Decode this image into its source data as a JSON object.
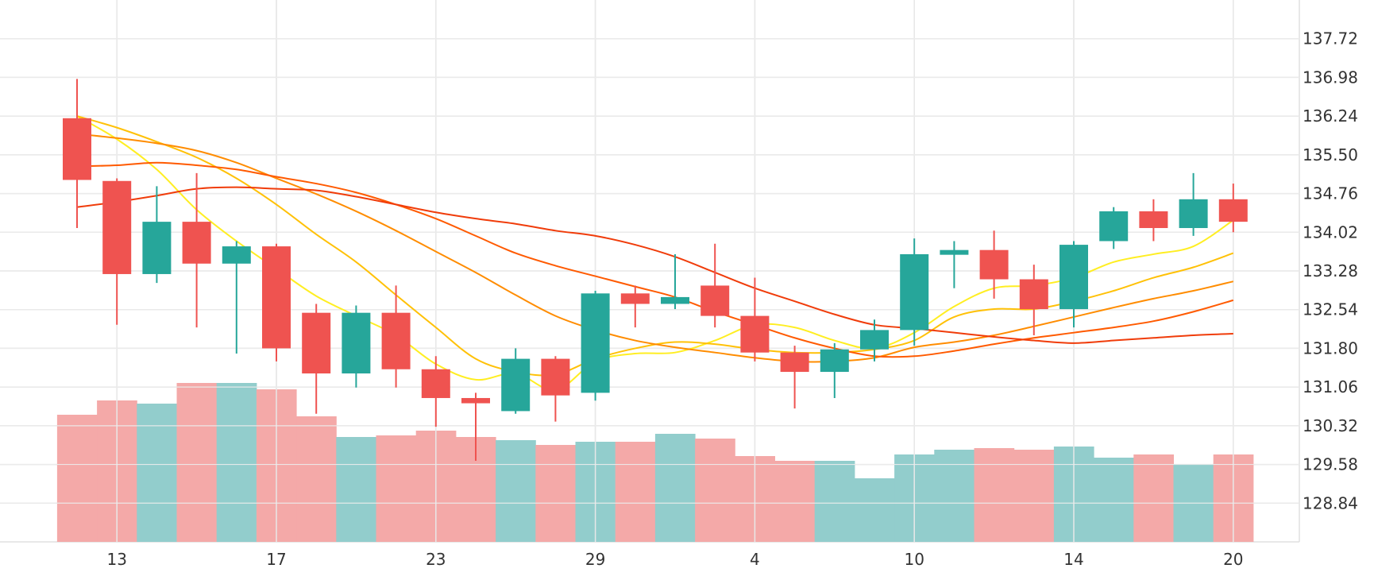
{
  "chart_data": {
    "type": "candlestick",
    "colors": {
      "up": "#26a69a",
      "down": "#ef5350",
      "volume_up": "#92cdcc",
      "volume_down": "#f4a9a8",
      "grid": "#e0e0e0",
      "ma_lines": [
        "#ffee22",
        "#ffc107",
        "#ff8c00",
        "#ff5a00",
        "#f03c0a"
      ]
    },
    "y_axis": {
      "ticks": [
        "137.72",
        "136.98",
        "136.24",
        "135.50",
        "134.76",
        "134.02",
        "133.28",
        "132.54",
        "131.80",
        "131.06",
        "130.32",
        "129.58",
        "128.84"
      ],
      "range": [
        128.1,
        138.46
      ]
    },
    "x_axis": {
      "ticks": [
        {
          "label": "13",
          "index": 1
        },
        {
          "label": "17",
          "index": 5
        },
        {
          "label": "23",
          "index": 9
        },
        {
          "label": "29",
          "index": 13
        },
        {
          "label": "4",
          "index": 17
        },
        {
          "label": "10",
          "index": 21
        },
        {
          "label": "14",
          "index": 25
        },
        {
          "label": "20",
          "index": 29
        }
      ]
    },
    "candles": [
      {
        "o": 136.2,
        "h": 136.95,
        "l": 134.1,
        "c": 135.02
      },
      {
        "o": 135.0,
        "h": 135.05,
        "l": 132.25,
        "c": 133.22
      },
      {
        "o": 133.22,
        "h": 134.9,
        "l": 133.05,
        "c": 134.22
      },
      {
        "o": 134.22,
        "h": 135.15,
        "l": 132.2,
        "c": 133.42
      },
      {
        "o": 133.42,
        "h": 133.85,
        "l": 131.7,
        "c": 133.75
      },
      {
        "o": 133.75,
        "h": 133.8,
        "l": 131.55,
        "c": 131.8
      },
      {
        "o": 132.48,
        "h": 132.65,
        "l": 130.55,
        "c": 131.32
      },
      {
        "o": 131.32,
        "h": 132.62,
        "l": 131.05,
        "c": 132.48
      },
      {
        "o": 132.48,
        "h": 133.0,
        "l": 131.05,
        "c": 131.4
      },
      {
        "o": 131.4,
        "h": 131.65,
        "l": 130.3,
        "c": 130.85
      },
      {
        "o": 130.85,
        "h": 130.95,
        "l": 129.65,
        "c": 130.75
      },
      {
        "o": 130.6,
        "h": 131.8,
        "l": 130.55,
        "c": 131.6
      },
      {
        "o": 131.6,
        "h": 131.65,
        "l": 130.4,
        "c": 130.9
      },
      {
        "o": 130.95,
        "h": 132.9,
        "l": 130.8,
        "c": 132.85
      },
      {
        "o": 132.85,
        "h": 133.0,
        "l": 132.2,
        "c": 132.65
      },
      {
        "o": 132.65,
        "h": 133.6,
        "l": 132.55,
        "c": 132.78
      },
      {
        "o": 133.0,
        "h": 133.8,
        "l": 132.2,
        "c": 132.42
      },
      {
        "o": 132.42,
        "h": 133.15,
        "l": 131.55,
        "c": 131.72
      },
      {
        "o": 131.72,
        "h": 131.85,
        "l": 130.65,
        "c": 131.35
      },
      {
        "o": 131.35,
        "h": 131.9,
        "l": 130.85,
        "c": 131.78
      },
      {
        "o": 131.78,
        "h": 132.35,
        "l": 131.55,
        "c": 132.15
      },
      {
        "o": 132.15,
        "h": 133.9,
        "l": 131.85,
        "c": 133.6
      },
      {
        "o": 133.65,
        "h": 133.85,
        "l": 132.95,
        "c": 133.68
      },
      {
        "o": 133.68,
        "h": 134.05,
        "l": 132.75,
        "c": 133.12
      },
      {
        "o": 133.12,
        "h": 133.4,
        "l": 132.05,
        "c": 132.55
      },
      {
        "o": 132.55,
        "h": 133.85,
        "l": 132.2,
        "c": 133.78
      },
      {
        "o": 133.85,
        "h": 134.5,
        "l": 133.7,
        "c": 134.42
      },
      {
        "o": 134.42,
        "h": 134.65,
        "l": 133.85,
        "c": 134.1
      },
      {
        "o": 134.1,
        "h": 135.15,
        "l": 133.95,
        "c": 134.65
      },
      {
        "o": 134.65,
        "h": 134.95,
        "l": 134.02,
        "c": 134.22
      }
    ],
    "volume": {
      "max": 1.0,
      "values": [
        0.8,
        0.89,
        0.87,
        1.0,
        1.0,
        0.96,
        0.79,
        0.66,
        0.67,
        0.7,
        0.66,
        0.64,
        0.61,
        0.63,
        0.63,
        0.68,
        0.65,
        0.54,
        0.51,
        0.51,
        0.4,
        0.55,
        0.58,
        0.59,
        0.58,
        0.6,
        0.53,
        0.55,
        0.49,
        0.55
      ],
      "directions": [
        "down",
        "down",
        "up",
        "down",
        "up",
        "down",
        "down",
        "up",
        "down",
        "down",
        "down",
        "up",
        "down",
        "up",
        "down",
        "up",
        "down",
        "down",
        "down",
        "up",
        "up",
        "up",
        "up",
        "down",
        "down",
        "up",
        "up",
        "down",
        "up",
        "down"
      ]
    },
    "moving_averages": [
      {
        "color": "#ffee22",
        "values": [
          136.24,
          135.8,
          135.22,
          134.45,
          133.85,
          133.32,
          132.8,
          132.42,
          132.05,
          131.5,
          131.2,
          131.32,
          131.0,
          131.55,
          131.7,
          131.72,
          131.95,
          132.25,
          132.2,
          131.95,
          131.8,
          132.1,
          132.6,
          132.95,
          133.0,
          133.15,
          133.45,
          133.6,
          133.75,
          134.25
        ]
      },
      {
        "color": "#ffc107",
        "values": [
          136.24,
          136.02,
          135.75,
          135.45,
          135.05,
          134.55,
          133.98,
          133.45,
          132.82,
          132.2,
          131.6,
          131.35,
          131.3,
          131.6,
          131.8,
          131.92,
          131.88,
          131.78,
          131.72,
          131.72,
          131.78,
          131.95,
          132.4,
          132.55,
          132.55,
          132.7,
          132.9,
          133.15,
          133.35,
          133.62
        ]
      },
      {
        "color": "#ff8c00",
        "values": [
          135.9,
          135.82,
          135.72,
          135.58,
          135.35,
          135.05,
          134.75,
          134.42,
          134.05,
          133.65,
          133.25,
          132.82,
          132.42,
          132.15,
          131.95,
          131.82,
          131.72,
          131.62,
          131.55,
          131.55,
          131.62,
          131.82,
          131.92,
          132.05,
          132.22,
          132.4,
          132.58,
          132.75,
          132.9,
          133.08
        ]
      },
      {
        "color": "#ff5a00",
        "values": [
          135.28,
          135.3,
          135.35,
          135.3,
          135.22,
          135.08,
          134.95,
          134.78,
          134.55,
          134.28,
          133.95,
          133.62,
          133.38,
          133.18,
          132.98,
          132.78,
          132.5,
          132.25,
          132.0,
          131.8,
          131.65,
          131.65,
          131.75,
          131.88,
          132.0,
          132.1,
          132.2,
          132.32,
          132.5,
          132.72
        ]
      },
      {
        "color": "#f03c0a",
        "values": [
          134.5,
          134.6,
          134.72,
          134.85,
          134.88,
          134.85,
          134.82,
          134.7,
          134.55,
          134.4,
          134.28,
          134.18,
          134.05,
          133.95,
          133.78,
          133.55,
          133.25,
          132.95,
          132.7,
          132.45,
          132.25,
          132.18,
          132.1,
          132.02,
          131.95,
          131.9,
          131.95,
          132.0,
          132.05,
          132.08
        ]
      }
    ]
  }
}
